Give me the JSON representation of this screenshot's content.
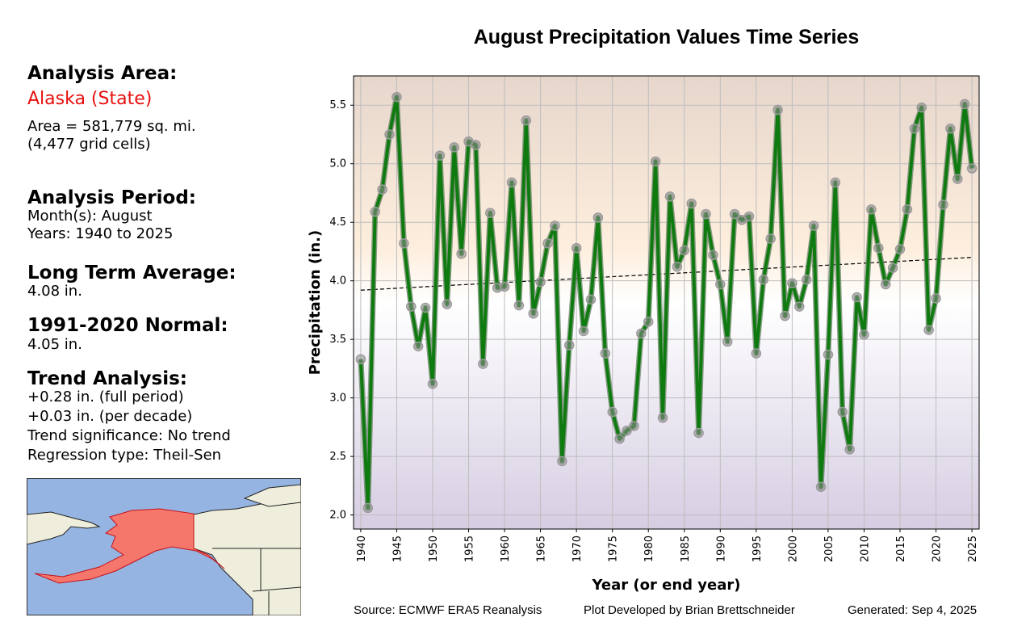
{
  "left_panel": {
    "analysis_area_heading": "Analysis Area:",
    "area_name": "Alaska (State)",
    "area_size": "Area = 581,779 sq. mi.",
    "grid_cells": "(4,477 grid cells)",
    "period_heading": "Analysis Period:",
    "months": "Month(s): August",
    "years": "Years: 1940 to 2025",
    "lta_heading": "Long Term Average:",
    "lta_value": "4.08 in.",
    "normal_heading": "1991-2020 Normal:",
    "normal_value": "4.05 in.",
    "trend_heading": "Trend Analysis:",
    "trend_full": "+0.28 in. (full period)",
    "trend_decade": "+0.03 in. (per decade)",
    "trend_significance": "Trend significance: No trend",
    "regression_type": "Regression type: Theil-Sen",
    "highlight_color": "#e8100e"
  },
  "footer": {
    "source": "Source: ECMWF ERA5 Reanalysis",
    "developer": "Plot Developed by Brian Brettschneider",
    "generated": "Generated: Sep 4, 2025"
  },
  "chart_data": {
    "type": "line",
    "title": "August Precipitation Values Time Series",
    "xlabel": "Year (or end year)",
    "ylabel": "Precipitation (in.)",
    "xlim": [
      1939,
      2026
    ],
    "ylim": [
      1.88,
      5.75
    ],
    "grid": true,
    "x_ticks": [
      1940,
      1945,
      1950,
      1955,
      1960,
      1965,
      1970,
      1975,
      1980,
      1985,
      1990,
      1995,
      2000,
      2005,
      2010,
      2015,
      2020,
      2025
    ],
    "y_ticks": [
      2.0,
      2.5,
      3.0,
      3.5,
      4.0,
      4.5,
      5.0,
      5.5
    ],
    "y_tick_labels": [
      "2.0",
      "2.5",
      "3.0",
      "3.5",
      "4.0",
      "4.5",
      "5.0",
      "5.5"
    ],
    "series": [
      {
        "name": "August Precipitation",
        "color": "#0f7a0f",
        "x": [
          1940,
          1941,
          1942,
          1943,
          1944,
          1945,
          1946,
          1947,
          1948,
          1949,
          1950,
          1951,
          1952,
          1953,
          1954,
          1955,
          1956,
          1957,
          1958,
          1959,
          1960,
          1961,
          1962,
          1963,
          1964,
          1965,
          1966,
          1967,
          1968,
          1969,
          1970,
          1971,
          1972,
          1973,
          1974,
          1975,
          1976,
          1977,
          1978,
          1979,
          1980,
          1981,
          1982,
          1983,
          1984,
          1985,
          1986,
          1987,
          1988,
          1989,
          1990,
          1991,
          1992,
          1993,
          1994,
          1995,
          1996,
          1997,
          1998,
          1999,
          2000,
          2001,
          2002,
          2003,
          2004,
          2005,
          2006,
          2007,
          2008,
          2009,
          2010,
          2011,
          2012,
          2013,
          2014,
          2015,
          2016,
          2017,
          2018,
          2019,
          2020,
          2021,
          2022,
          2023,
          2024,
          2025
        ],
        "values": [
          3.33,
          2.06,
          4.59,
          4.78,
          5.25,
          5.57,
          4.32,
          3.78,
          3.44,
          3.77,
          3.12,
          5.07,
          3.8,
          5.14,
          4.23,
          5.19,
          5.16,
          3.29,
          4.58,
          3.94,
          3.95,
          4.84,
          3.79,
          5.37,
          3.72,
          3.99,
          4.32,
          4.47,
          2.46,
          3.45,
          4.28,
          3.57,
          3.84,
          4.54,
          3.38,
          2.88,
          2.65,
          2.72,
          2.76,
          3.55,
          3.65,
          5.02,
          2.83,
          4.72,
          4.12,
          4.26,
          4.66,
          2.7,
          4.57,
          4.22,
          3.97,
          3.48,
          4.57,
          4.52,
          4.55,
          3.38,
          4.01,
          4.36,
          5.46,
          3.7,
          3.98,
          3.78,
          4.01,
          4.47,
          2.24,
          3.37,
          4.84,
          2.88,
          2.56,
          3.86,
          3.54,
          4.61,
          4.28,
          3.97,
          4.11,
          4.27,
          4.61,
          5.3,
          5.48,
          3.58,
          3.85,
          4.65,
          5.3,
          4.87,
          5.51,
          4.96
        ]
      }
    ],
    "trend_line": {
      "x": [
        1940,
        2025
      ],
      "y": [
        3.92,
        4.2
      ]
    },
    "background_gradient": {
      "top": "#e6d6cc",
      "mid_warm": "#fdeedd",
      "center": "#ffffff",
      "bottom": "#d6cde2"
    }
  }
}
